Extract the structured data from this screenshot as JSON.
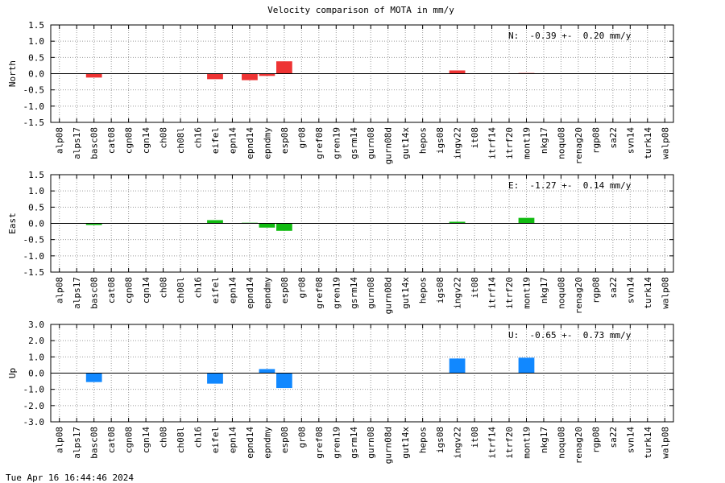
{
  "title": "Velocity comparison of MOTA in mm/y",
  "timestamp": "Tue Apr 16 16:44:46 2024",
  "colors": {
    "north": "#ee3333",
    "east": "#11bb11",
    "up": "#1188ff"
  },
  "chart_data": [
    {
      "type": "bar",
      "ylabel": "North",
      "annotation": "N:  -0.39 +-  0.20 mm/y",
      "ylim": [
        -1.5,
        1.5
      ],
      "yticks": [
        "1.5",
        "1.0",
        "0.5",
        "0.0",
        "-0.5",
        "-1.0",
        "-1.5"
      ],
      "grid": true,
      "categories": [
        "alp08",
        "alps17",
        "basc08",
        "cat08",
        "cgn08",
        "cgn14",
        "ch08",
        "ch08l",
        "ch16",
        "eifel",
        "epn14",
        "epnd14",
        "epndmy",
        "esp08",
        "gr08",
        "gref08",
        "gren19",
        "gsrm14",
        "gurn08",
        "gurn08d",
        "gut14x",
        "hepos",
        "igs08",
        "ingv22",
        "it08",
        "itrf14",
        "itrf20",
        "mont19",
        "nkg17",
        "noqu08",
        "renag20",
        "rgp08",
        "sa22",
        "svn14",
        "turk14",
        "walp08"
      ],
      "values": [
        0,
        0,
        -0.12,
        0,
        0,
        0,
        0,
        0,
        0,
        -0.17,
        0,
        -0.2,
        -0.07,
        0.38,
        0,
        0,
        0,
        0,
        0,
        0,
        0,
        0,
        0,
        0.1,
        0,
        0,
        0,
        0.02,
        0,
        0,
        0,
        0,
        0,
        0,
        0,
        0
      ]
    },
    {
      "type": "bar",
      "ylabel": "East",
      "annotation": "E:  -1.27 +-  0.14 mm/y",
      "ylim": [
        -1.5,
        1.5
      ],
      "yticks": [
        "1.5",
        "1.0",
        "0.5",
        "0.0",
        "-0.5",
        "-1.0",
        "-1.5"
      ],
      "grid": true,
      "categories": [
        "alp08",
        "alps17",
        "basc08",
        "cat08",
        "cgn08",
        "cgn14",
        "ch08",
        "ch08l",
        "ch16",
        "eifel",
        "epn14",
        "epnd14",
        "epndmy",
        "esp08",
        "gr08",
        "gref08",
        "gren19",
        "gsrm14",
        "gurn08",
        "gurn08d",
        "gut14x",
        "hepos",
        "igs08",
        "ingv22",
        "it08",
        "itrf14",
        "itrf20",
        "mont19",
        "nkg17",
        "noqu08",
        "renag20",
        "rgp08",
        "sa22",
        "svn14",
        "turk14",
        "walp08"
      ],
      "values": [
        0,
        0,
        -0.05,
        0,
        0,
        0,
        0,
        0,
        0,
        0.1,
        0,
        0.02,
        -0.13,
        -0.23,
        0,
        0,
        0,
        0,
        0,
        0,
        0,
        0,
        0,
        0.05,
        0,
        0,
        0,
        0.17,
        0,
        0,
        0,
        0,
        0,
        0,
        0,
        0
      ]
    },
    {
      "type": "bar",
      "ylabel": "Up",
      "annotation": "U:  -0.65 +-  0.73 mm/y",
      "ylim": [
        -3.0,
        3.0
      ],
      "yticks": [
        "3.0",
        "2.0",
        "1.0",
        "0.0",
        "-1.0",
        "-2.0",
        "-3.0"
      ],
      "grid": true,
      "categories": [
        "alp08",
        "alps17",
        "basc08",
        "cat08",
        "cgn08",
        "cgn14",
        "ch08",
        "ch08l",
        "ch16",
        "eifel",
        "epn14",
        "epnd14",
        "epndmy",
        "esp08",
        "gr08",
        "gref08",
        "gren19",
        "gsrm14",
        "gurn08",
        "gurn08d",
        "gut14x",
        "hepos",
        "igs08",
        "ingv22",
        "it08",
        "itrf14",
        "itrf20",
        "mont19",
        "nkg17",
        "noqu08",
        "renag20",
        "rgp08",
        "sa22",
        "svn14",
        "turk14",
        "walp08"
      ],
      "values": [
        0,
        0,
        -0.55,
        0,
        0,
        0,
        0,
        0,
        0,
        -0.65,
        0,
        0,
        0.25,
        -0.92,
        0,
        0,
        0,
        0,
        0,
        0,
        0,
        0,
        0,
        0.9,
        0,
        0,
        0,
        0.95,
        0,
        0,
        0,
        0,
        0,
        0,
        0,
        0
      ]
    }
  ]
}
